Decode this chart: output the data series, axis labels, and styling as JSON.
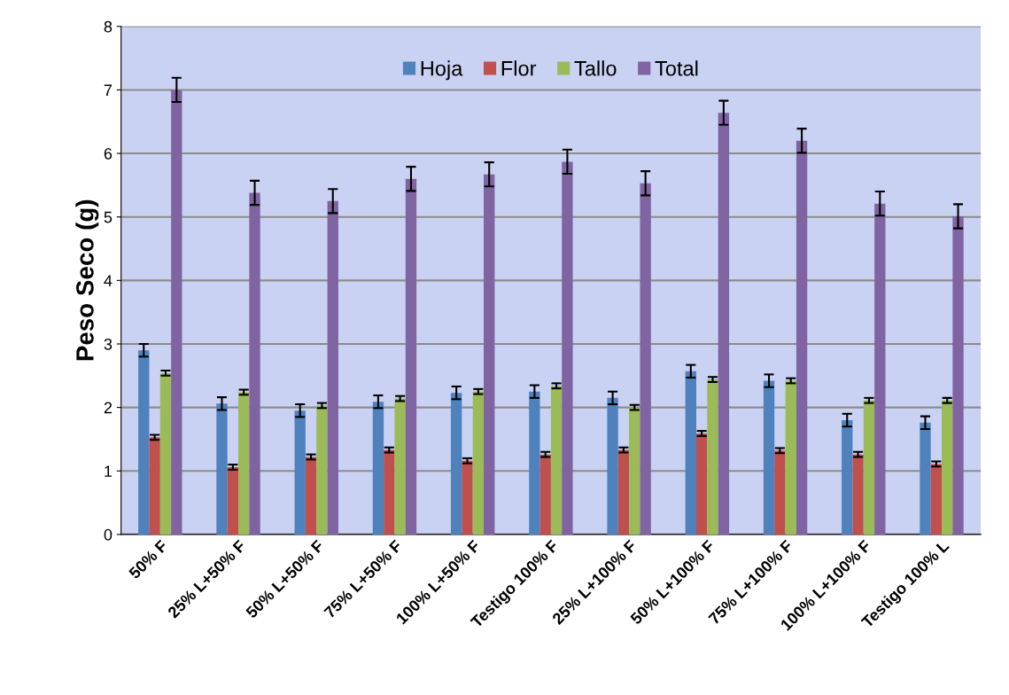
{
  "chart_data": {
    "type": "bar",
    "ylabel": "Peso Seco (g)",
    "categories": [
      "50% F",
      "25% L+50% F",
      "50% L+50% F",
      "75% L+50% F",
      "100% L+50% F",
      "Testigo 100% F",
      "25% L+100% F",
      "50% L+100% F",
      "75% L+100% F",
      "100% L+100% F",
      "Testigo 100% L"
    ],
    "series": [
      {
        "name": "Hoja",
        "color": "#4f81bd",
        "values": [
          2.9,
          2.06,
          1.95,
          2.09,
          2.23,
          2.25,
          2.15,
          2.57,
          2.42,
          1.8,
          1.76
        ],
        "errors": [
          0.1,
          0.1,
          0.1,
          0.1,
          0.1,
          0.1,
          0.1,
          0.1,
          0.1,
          0.1,
          0.1
        ]
      },
      {
        "name": "Flor",
        "color": "#c0504d",
        "values": [
          1.53,
          1.06,
          1.22,
          1.33,
          1.16,
          1.26,
          1.33,
          1.59,
          1.32,
          1.26,
          1.11
        ],
        "errors": [
          0.04,
          0.04,
          0.04,
          0.04,
          0.04,
          0.04,
          0.04,
          0.04,
          0.04,
          0.04,
          0.04
        ]
      },
      {
        "name": "Tallo",
        "color": "#9bbb59",
        "values": [
          2.54,
          2.24,
          2.03,
          2.14,
          2.25,
          2.34,
          2.0,
          2.44,
          2.42,
          2.11,
          2.11
        ],
        "errors": [
          0.04,
          0.04,
          0.04,
          0.04,
          0.04,
          0.04,
          0.04,
          0.04,
          0.04,
          0.04,
          0.04
        ]
      },
      {
        "name": "Total",
        "color": "#8064a2",
        "values": [
          7.0,
          5.38,
          5.25,
          5.6,
          5.67,
          5.87,
          5.53,
          6.64,
          6.2,
          5.21,
          5.01
        ],
        "errors": [
          0.19,
          0.19,
          0.19,
          0.19,
          0.19,
          0.19,
          0.19,
          0.19,
          0.19,
          0.19,
          0.19
        ]
      }
    ],
    "ylim": [
      0,
      8
    ],
    "yticks": [
      0,
      1,
      2,
      3,
      4,
      5,
      6,
      7,
      8
    ],
    "grid": "y",
    "legend": "top"
  }
}
